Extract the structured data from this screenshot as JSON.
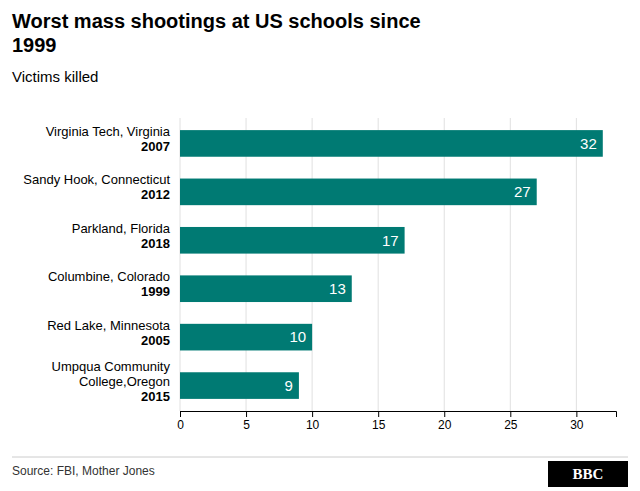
{
  "chart_data": {
    "type": "bar",
    "orientation": "horizontal",
    "title": "Worst mass shootings at US schools since\n1999",
    "subtitle": "Victims killed",
    "source": "Source: FBI, Mother Jones",
    "annotations": [
      "BBC"
    ],
    "categories": [
      "Virginia Tech, Virginia\n2007",
      "Sandy Hook, Connecticut\n2012",
      "Parkland, Florida\n2018",
      "Columbine, Colorado\n1999",
      "Red Lake, Minnesota\n2005",
      "Umpqua Community\nCollege,Oregon\n2015"
    ],
    "values": [
      32,
      27,
      17,
      13,
      10,
      9
    ],
    "color": "#007a73",
    "xlim": [
      0,
      33
    ],
    "xticks": [
      0,
      5,
      10,
      15,
      20,
      25,
      30
    ],
    "grid": true,
    "data_labels": true
  }
}
